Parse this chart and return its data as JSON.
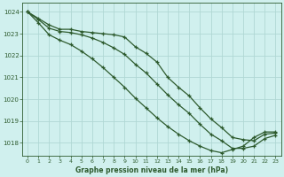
{
  "title": "Graphe pression niveau de la mer (hPa)",
  "bg_color": "#d0f0ee",
  "grid_color": "#b0d8d4",
  "line_color": "#2d5a2d",
  "xlim": [
    -0.5,
    23.5
  ],
  "ylim": [
    1017.4,
    1024.4
  ],
  "xticks": [
    0,
    1,
    2,
    3,
    4,
    5,
    6,
    7,
    8,
    9,
    10,
    11,
    12,
    13,
    14,
    15,
    16,
    17,
    18,
    19,
    20,
    21,
    22,
    23
  ],
  "yticks": [
    1018,
    1019,
    1020,
    1021,
    1022,
    1023,
    1024
  ],
  "series": [
    {
      "x": [
        0,
        1,
        2,
        3,
        4,
        5,
        6,
        7,
        8,
        9,
        10,
        11,
        12,
        13,
        14,
        15,
        16,
        17,
        18,
        19,
        20,
        21,
        22,
        23
      ],
      "y": [
        1024.0,
        1023.7,
        1023.4,
        1023.2,
        1023.2,
        1023.1,
        1023.05,
        1023.0,
        1022.95,
        1022.85,
        1022.4,
        1022.1,
        1021.7,
        1021.0,
        1020.55,
        1020.15,
        1019.6,
        1019.1,
        1018.7,
        1018.25,
        1018.15,
        1018.1,
        1018.4,
        1018.45
      ]
    },
    {
      "x": [
        0,
        1,
        2,
        3,
        4,
        5,
        6,
        7,
        8,
        9,
        10,
        11,
        12,
        13,
        14,
        15,
        16,
        17,
        18,
        19,
        20,
        21,
        22,
        23
      ],
      "y": [
        1024.0,
        1023.65,
        1023.25,
        1023.1,
        1023.05,
        1022.95,
        1022.8,
        1022.6,
        1022.35,
        1022.05,
        1021.6,
        1021.2,
        1020.7,
        1020.2,
        1019.75,
        1019.35,
        1018.85,
        1018.4,
        1018.1,
        1017.75,
        1017.75,
        1017.85,
        1018.2,
        1018.35
      ]
    },
    {
      "x": [
        0,
        1,
        2,
        3,
        4,
        5,
        6,
        7,
        8,
        9,
        10,
        11,
        12,
        13,
        14,
        15,
        16,
        17,
        18,
        19,
        20,
        21,
        22,
        23
      ],
      "y": [
        1024.0,
        1023.5,
        1022.95,
        1022.7,
        1022.5,
        1022.2,
        1021.85,
        1021.45,
        1021.0,
        1020.55,
        1020.05,
        1019.6,
        1019.15,
        1018.75,
        1018.4,
        1018.1,
        1017.85,
        1017.65,
        1017.55,
        1017.7,
        1017.85,
        1018.25,
        1018.5,
        1018.5
      ]
    }
  ]
}
